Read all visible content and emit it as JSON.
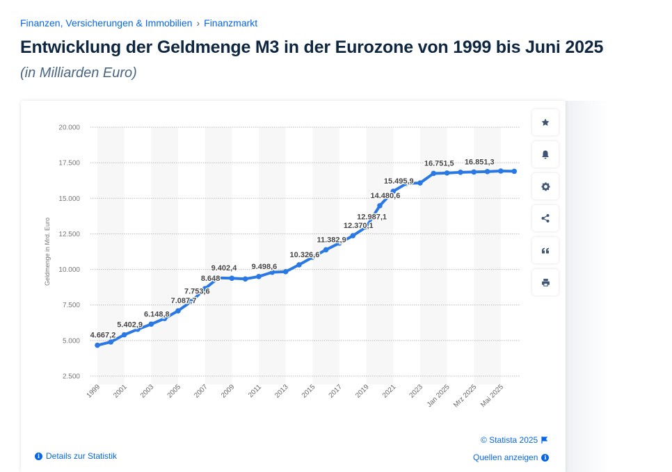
{
  "breadcrumb": {
    "items": [
      "Finanzen, Versicherungen & Immobilien",
      "Finanzmarkt"
    ],
    "separator": "›"
  },
  "title": "Entwicklung der Geldmenge M3 in der Eurozone von 1999 bis Juni 2025",
  "subtitle": "(in Milliarden Euro)",
  "toolbar": {
    "icons": [
      "star-icon",
      "bell-icon",
      "gear-icon",
      "share-icon",
      "quote-icon",
      "print-icon"
    ]
  },
  "footer": {
    "copyright": "© Statista 2025",
    "details": "Details zur Statistik",
    "sources": "Quellen anzeigen"
  },
  "colors": {
    "line": "#2a78e4",
    "accent": "#0666e5"
  },
  "chart_data": {
    "type": "line",
    "ylabel": "Geldmenge in Mrd. Euro",
    "ylim": [
      2500,
      20000
    ],
    "yticks": [
      "2.500",
      "5.000",
      "7.500",
      "10.000",
      "12.500",
      "15.000",
      "17.500",
      "20.000"
    ],
    "ytick_values": [
      2500,
      5000,
      7500,
      10000,
      12500,
      15000,
      17500,
      20000
    ],
    "grid": true,
    "x": [
      "1999",
      "2000",
      "2001",
      "2002",
      "2003",
      "2004",
      "2005",
      "2006",
      "2007",
      "2008",
      "2009",
      "2010",
      "2011",
      "2012",
      "2013",
      "2014",
      "2015",
      "2016",
      "2017",
      "2018",
      "2019",
      "2020",
      "2021",
      "2022",
      "2023",
      "2024",
      "Jan 2025",
      "Feb 2025",
      "Mrz 2025",
      "Apr 2025",
      "Mai 2025",
      "Jun 2025"
    ],
    "xtick_labels": [
      "1999",
      "",
      "2001",
      "",
      "2003",
      "",
      "2005",
      "",
      "2007",
      "",
      "2009",
      "",
      "2011",
      "",
      "2013",
      "",
      "2015",
      "",
      "2017",
      "",
      "2019",
      "",
      "2021",
      "",
      "2023",
      "",
      "Jan 2025",
      "",
      "Mrz 2025",
      "",
      "Mai 2025",
      ""
    ],
    "values": [
      4667.2,
      4900,
      5402.9,
      5790,
      6148.8,
      6550,
      7087.7,
      7753.6,
      8648,
      9402.4,
      9380,
      9330,
      9498.6,
      9800,
      9840,
      10326.6,
      10850,
      11382.9,
      11850,
      12370.1,
      12987.1,
      14480.6,
      15495.9,
      16050,
      16080,
      16751.5,
      16780,
      16830,
      16851.3,
      16880,
      16920,
      16900
    ],
    "data_labels": [
      "4.667,2",
      "",
      "5.402,9",
      "",
      "6.148,8",
      "",
      "7.087,7",
      "7.753,6",
      "8.648",
      "9.402,4",
      "",
      "",
      "9.498,6",
      "",
      "",
      "10.326,6",
      "",
      "11.382,9",
      "",
      "12.370,1",
      "12.987,1",
      "14.480,6",
      "15.495,9",
      "",
      "",
      "16.751,5",
      "",
      "",
      "16.851,3",
      "",
      "",
      ""
    ]
  }
}
